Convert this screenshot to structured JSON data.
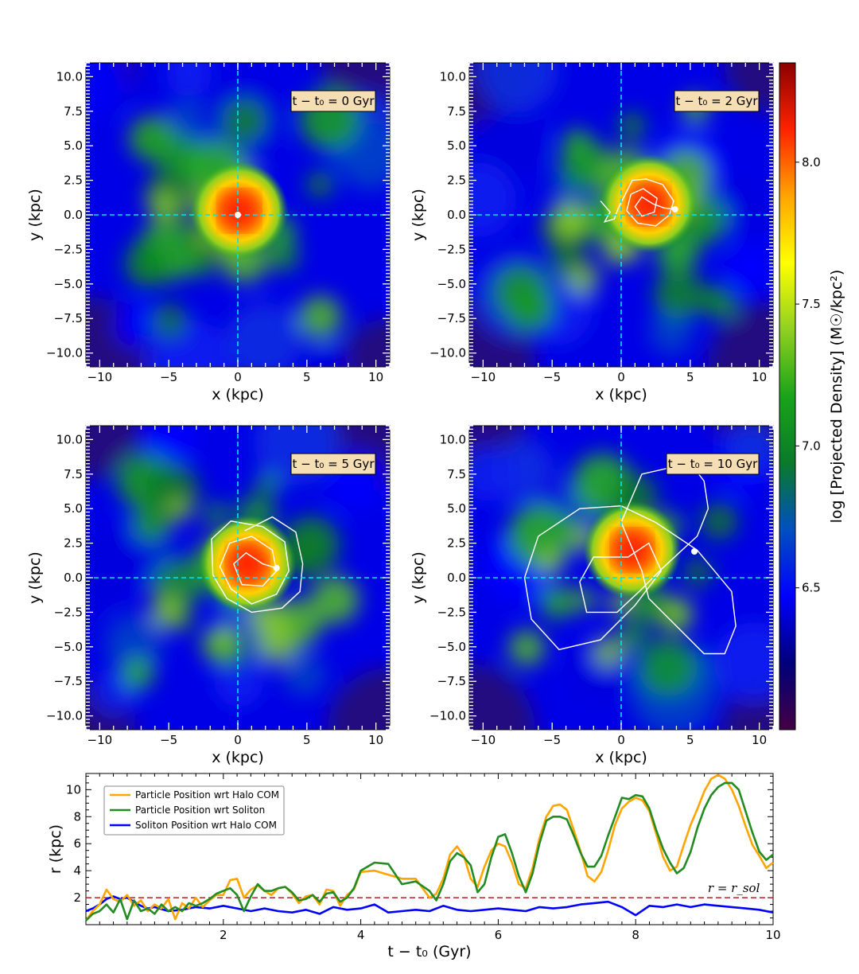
{
  "chart_data": [
    {
      "type": "heatmap",
      "panel": "top-left",
      "title": "t − t₀ = 0 Gyr",
      "time_label": "t − t₀ = 0 Gyr",
      "xlabel": "x (kpc)",
      "ylabel": "y (kpc)",
      "xlim": [
        -11,
        11
      ],
      "ylim": [
        -11,
        11
      ],
      "xticks": [
        -10,
        -5,
        0,
        5,
        10
      ],
      "yticks": [
        10.0,
        7.5,
        5.0,
        2.5,
        0.0,
        -2.5,
        -5.0,
        -7.5,
        -10.0
      ],
      "peak": [
        0.1,
        0.3
      ],
      "particle": [
        0.0,
        0.0
      ],
      "orbit": []
    },
    {
      "type": "heatmap",
      "panel": "top-right",
      "title": "t − t₀ = 2 Gyr",
      "time_label": "t − t₀ = 2 Gyr",
      "xlabel": "x (kpc)",
      "ylabel": "y (kpc)",
      "xlim": [
        -11,
        11
      ],
      "ylim": [
        -11,
        11
      ],
      "xticks": [
        -10,
        -5,
        0,
        5,
        10
      ],
      "yticks": [
        10.0,
        7.5,
        5.0,
        2.5,
        0.0,
        -2.5,
        -5.0,
        -7.5,
        -10.0
      ],
      "peak": [
        2.0,
        0.8
      ],
      "particle": [
        3.9,
        0.4
      ],
      "orbit": [
        [
          -1.5,
          1.0
        ],
        [
          -0.8,
          0.2
        ],
        [
          -1.2,
          -0.5
        ],
        [
          -0.5,
          -0.3
        ],
        [
          -0.2,
          0.5
        ],
        [
          0.3,
          1.5
        ],
        [
          0.8,
          2.5
        ],
        [
          1.8,
          2.6
        ],
        [
          3.0,
          2.2
        ],
        [
          3.8,
          1.0
        ],
        [
          3.5,
          0.0
        ],
        [
          2.5,
          -0.8
        ],
        [
          1.2,
          -0.6
        ],
        [
          0.4,
          0.3
        ],
        [
          0.7,
          1.5
        ],
        [
          1.6,
          1.9
        ],
        [
          2.6,
          1.2
        ],
        [
          2.4,
          0.2
        ],
        [
          1.5,
          -0.1
        ],
        [
          1.0,
          0.6
        ],
        [
          1.5,
          1.3
        ],
        [
          2.3,
          0.8
        ],
        [
          3.1,
          0.5
        ],
        [
          3.9,
          0.4
        ]
      ]
    },
    {
      "type": "heatmap",
      "panel": "bottom-left",
      "title": "t − t₀ = 5 Gyr",
      "time_label": "t − t₀ = 5 Gyr",
      "xlabel": "x (kpc)",
      "ylabel": "y (kpc)",
      "xlim": [
        -11,
        11
      ],
      "ylim": [
        -11,
        11
      ],
      "xticks": [
        -10,
        -5,
        0,
        5,
        10
      ],
      "yticks": [
        10.0,
        7.5,
        5.0,
        2.5,
        0.0,
        -2.5,
        -5.0,
        -7.5,
        -10.0
      ],
      "peak": [
        0.7,
        1.0
      ],
      "particle": [
        2.8,
        0.7
      ],
      "orbit": [
        [
          0.5,
          3.4
        ],
        [
          2.5,
          4.4
        ],
        [
          4.2,
          3.3
        ],
        [
          4.7,
          1.0
        ],
        [
          4.5,
          -1.0
        ],
        [
          3.2,
          -2.2
        ],
        [
          1.0,
          -2.5
        ],
        [
          -0.8,
          -1.5
        ],
        [
          -1.8,
          0.2
        ],
        [
          -1.9,
          2.8
        ],
        [
          -0.5,
          4.1
        ],
        [
          1.8,
          3.7
        ],
        [
          3.4,
          2.6
        ],
        [
          3.7,
          0.5
        ],
        [
          2.8,
          -1.2
        ],
        [
          1.0,
          -1.9
        ],
        [
          -0.5,
          -0.8
        ],
        [
          -1.3,
          0.8
        ],
        [
          -0.6,
          2.5
        ],
        [
          1.0,
          3.0
        ],
        [
          2.5,
          2.0
        ],
        [
          2.8,
          0.5
        ],
        [
          1.8,
          -0.6
        ],
        [
          0.3,
          -0.5
        ],
        [
          -0.3,
          1.0
        ],
        [
          0.6,
          1.8
        ],
        [
          1.8,
          1.0
        ],
        [
          2.8,
          0.7
        ]
      ]
    },
    {
      "type": "heatmap",
      "panel": "bottom-right",
      "title": "t − t₀ = 10 Gyr",
      "time_label": "t − t₀ = 10 Gyr",
      "xlabel": "x (kpc)",
      "ylabel": "y (kpc)",
      "xlim": [
        -11,
        11
      ],
      "ylim": [
        -11,
        11
      ],
      "xticks": [
        -10,
        -5,
        0,
        5,
        10
      ],
      "yticks": [
        10.0,
        7.5,
        5.0,
        2.5,
        0.0,
        -2.5,
        -5.0,
        -7.5,
        -10.0
      ],
      "peak": [
        0.8,
        2.0
      ],
      "particle": [
        5.3,
        1.9
      ],
      "orbit": [
        [
          2.9,
          0.5
        ],
        [
          1.0,
          -2.0
        ],
        [
          -1.5,
          -4.5
        ],
        [
          -4.5,
          -5.2
        ],
        [
          -6.5,
          -3.0
        ],
        [
          -7.0,
          0.0
        ],
        [
          -6.0,
          3.0
        ],
        [
          -3.0,
          5.0
        ],
        [
          0.0,
          5.2
        ],
        [
          2.5,
          4.0
        ],
        [
          5.5,
          2.0
        ],
        [
          8.0,
          -1.0
        ],
        [
          8.3,
          -3.5
        ],
        [
          7.5,
          -5.5
        ],
        [
          6.0,
          -5.5
        ],
        [
          3.5,
          -3.0
        ],
        [
          2.0,
          -1.5
        ],
        [
          1.5,
          0.5
        ],
        [
          0.0,
          4.0
        ],
        [
          1.5,
          7.5
        ],
        [
          5.0,
          8.3
        ],
        [
          6.0,
          7.0
        ],
        [
          6.3,
          5.0
        ],
        [
          5.5,
          3.0
        ],
        [
          3.0,
          0.7
        ],
        [
          1.3,
          -1.0
        ],
        [
          -0.3,
          -2.5
        ],
        [
          -2.5,
          -2.5
        ],
        [
          -3.0,
          -0.3
        ],
        [
          -2.0,
          1.5
        ],
        [
          0.5,
          1.5
        ],
        [
          2.0,
          2.5
        ],
        [
          2.9,
          0.5
        ]
      ]
    },
    {
      "type": "line",
      "panel": "bottom",
      "xlabel": "t − t₀ (Gyr)",
      "ylabel": "r (kpc)",
      "xlim": [
        0,
        10
      ],
      "ylim": [
        0,
        11.2
      ],
      "xticks": [
        2,
        4,
        6,
        8,
        10
      ],
      "yticks": [
        2,
        4,
        6,
        8,
        10
      ],
      "legend_position": "upper-left",
      "reference_line": {
        "y": 2.0,
        "label": "r = r_sol",
        "color": "#b22222"
      },
      "series": [
        {
          "name": "Particle Position wrt Halo COM",
          "color": "#ffa500",
          "x": [
            0,
            0.1,
            0.2,
            0.3,
            0.4,
            0.5,
            0.6,
            0.7,
            0.8,
            0.9,
            1.0,
            1.1,
            1.2,
            1.3,
            1.4,
            1.5,
            1.6,
            1.7,
            1.8,
            1.9,
            2.0,
            2.1,
            2.2,
            2.3,
            2.4,
            2.5,
            2.6,
            2.7,
            2.8,
            2.9,
            3.0,
            3.1,
            3.2,
            3.3,
            3.4,
            3.5,
            3.6,
            3.7,
            3.8,
            3.9,
            4.0,
            4.2,
            4.4,
            4.6,
            4.8,
            5.0,
            5.1,
            5.2,
            5.3,
            5.4,
            5.5,
            5.6,
            5.7,
            5.8,
            5.9,
            6.0,
            6.1,
            6.2,
            6.3,
            6.4,
            6.5,
            6.6,
            6.7,
            6.8,
            6.9,
            7.0,
            7.1,
            7.2,
            7.3,
            7.4,
            7.5,
            7.6,
            7.7,
            7.8,
            7.9,
            8.0,
            8.1,
            8.2,
            8.3,
            8.4,
            8.5,
            8.6,
            8.7,
            8.8,
            8.9,
            9.0,
            9.1,
            9.2,
            9.3,
            9.4,
            9.5,
            9.6,
            9.7,
            9.8,
            9.9,
            10.0
          ],
          "values": [
            0.3,
            1.0,
            1.5,
            2.6,
            1.9,
            1.7,
            2.2,
            1.4,
            1.8,
            1.0,
            1.5,
            1.2,
            1.9,
            0.4,
            1.6,
            1.2,
            2.0,
            1.3,
            1.8,
            2.2,
            2.2,
            3.3,
            3.4,
            2.0,
            2.6,
            2.9,
            2.5,
            2.2,
            2.7,
            2.8,
            2.3,
            1.6,
            2.1,
            2.2,
            1.5,
            2.6,
            2.5,
            1.4,
            2.2,
            2.6,
            3.9,
            4.0,
            3.7,
            3.4,
            3.4,
            2.0,
            2.3,
            3.4,
            5.2,
            5.8,
            5.1,
            3.4,
            2.8,
            4.3,
            5.5,
            6.0,
            5.8,
            4.6,
            3.0,
            2.7,
            4.2,
            6.4,
            8.0,
            8.8,
            8.9,
            8.5,
            7.0,
            5.4,
            3.6,
            3.2,
            3.9,
            5.5,
            7.4,
            8.6,
            9.1,
            9.4,
            9.2,
            8.4,
            6.7,
            5.0,
            4.0,
            4.3,
            5.9,
            7.4,
            8.6,
            9.9,
            10.8,
            11.1,
            10.8,
            10.0,
            8.8,
            7.3,
            5.9,
            5.1,
            4.2,
            4.6
          ]
        },
        {
          "name": "Particle Position wrt Soliton",
          "color": "#228b22",
          "x": [
            0,
            0.1,
            0.2,
            0.3,
            0.4,
            0.5,
            0.6,
            0.7,
            0.8,
            0.9,
            1.0,
            1.1,
            1.2,
            1.3,
            1.4,
            1.5,
            1.6,
            1.7,
            1.8,
            1.9,
            2.0,
            2.1,
            2.2,
            2.3,
            2.4,
            2.5,
            2.6,
            2.7,
            2.8,
            2.9,
            3.0,
            3.1,
            3.2,
            3.3,
            3.4,
            3.5,
            3.6,
            3.7,
            3.8,
            3.9,
            4.0,
            4.2,
            4.4,
            4.6,
            4.8,
            5.0,
            5.1,
            5.2,
            5.3,
            5.4,
            5.5,
            5.6,
            5.7,
            5.8,
            5.9,
            6.0,
            6.1,
            6.2,
            6.3,
            6.4,
            6.5,
            6.6,
            6.7,
            6.8,
            6.9,
            7.0,
            7.1,
            7.2,
            7.3,
            7.4,
            7.5,
            7.6,
            7.7,
            7.8,
            7.9,
            8.0,
            8.1,
            8.2,
            8.3,
            8.4,
            8.5,
            8.6,
            8.7,
            8.8,
            8.9,
            9.0,
            9.1,
            9.2,
            9.3,
            9.4,
            9.5,
            9.6,
            9.7,
            9.8,
            9.9,
            10.0
          ],
          "values": [
            0.3,
            0.8,
            1.0,
            1.5,
            0.9,
            1.9,
            0.4,
            1.8,
            1.0,
            1.2,
            0.8,
            1.5,
            1.0,
            1.3,
            1.0,
            1.6,
            1.4,
            1.6,
            1.9,
            2.3,
            2.5,
            2.7,
            2.2,
            1.0,
            2.1,
            3.0,
            2.5,
            2.5,
            2.7,
            2.8,
            2.4,
            1.8,
            1.9,
            2.2,
            1.7,
            2.3,
            2.4,
            1.7,
            2.0,
            2.7,
            4.0,
            4.6,
            4.5,
            3.0,
            3.2,
            2.5,
            1.8,
            3.0,
            4.7,
            5.3,
            5.0,
            4.4,
            2.4,
            3.0,
            5.0,
            6.5,
            6.7,
            5.3,
            3.6,
            2.4,
            3.8,
            6.0,
            7.7,
            8.0,
            8.0,
            7.8,
            6.6,
            5.3,
            4.3,
            4.3,
            5.1,
            6.6,
            8.0,
            9.4,
            9.3,
            9.6,
            9.5,
            8.6,
            7.0,
            5.6,
            4.6,
            3.8,
            4.2,
            5.4,
            7.2,
            8.6,
            9.6,
            10.2,
            10.5,
            10.5,
            10.0,
            8.4,
            6.8,
            5.4,
            4.8,
            5.2
          ]
        },
        {
          "name": "Soliton Position wrt Halo COM",
          "color": "#0000ff",
          "x": [
            0,
            0.1,
            0.2,
            0.3,
            0.4,
            0.5,
            0.6,
            0.7,
            0.8,
            0.9,
            1.0,
            1.2,
            1.4,
            1.6,
            1.8,
            2.0,
            2.2,
            2.4,
            2.6,
            2.8,
            3.0,
            3.2,
            3.4,
            3.6,
            3.8,
            4.0,
            4.2,
            4.4,
            4.6,
            4.8,
            5.0,
            5.2,
            5.4,
            5.6,
            5.8,
            6.0,
            6.2,
            6.4,
            6.6,
            6.8,
            7.0,
            7.2,
            7.4,
            7.6,
            7.8,
            8.0,
            8.2,
            8.4,
            8.6,
            8.8,
            9.0,
            9.2,
            9.4,
            9.6,
            9.8,
            10.0
          ],
          "values": [
            1.0,
            1.2,
            1.5,
            1.9,
            2.1,
            1.9,
            2.0,
            1.7,
            1.4,
            1.2,
            1.3,
            1.0,
            1.1,
            1.3,
            1.2,
            1.4,
            1.2,
            1.0,
            1.2,
            1.0,
            0.9,
            1.1,
            0.8,
            1.3,
            1.1,
            1.2,
            1.5,
            0.9,
            1.0,
            1.1,
            1.0,
            1.4,
            1.1,
            1.0,
            1.1,
            1.2,
            1.1,
            1.0,
            1.3,
            1.2,
            1.3,
            1.5,
            1.6,
            1.7,
            1.3,
            0.7,
            1.4,
            1.3,
            1.5,
            1.3,
            1.5,
            1.4,
            1.3,
            1.2,
            1.1,
            0.9
          ]
        }
      ]
    }
  ],
  "colorbar": {
    "label": "log [Projected Density] (M☉/kpc²)",
    "min": 6.0,
    "max": 8.35,
    "ticks": [
      "6.5",
      "7.0",
      "7.5",
      "8.0"
    ],
    "tick_values": [
      6.5,
      7.0,
      7.5,
      8.0
    ],
    "colors": [
      "#440044",
      "#00007a",
      "#0000ff",
      "#0050c0",
      "#0a7a2a",
      "#1aa31a",
      "#90d020",
      "#ffff00",
      "#ffa500",
      "#ff2200",
      "#8b0000"
    ]
  }
}
